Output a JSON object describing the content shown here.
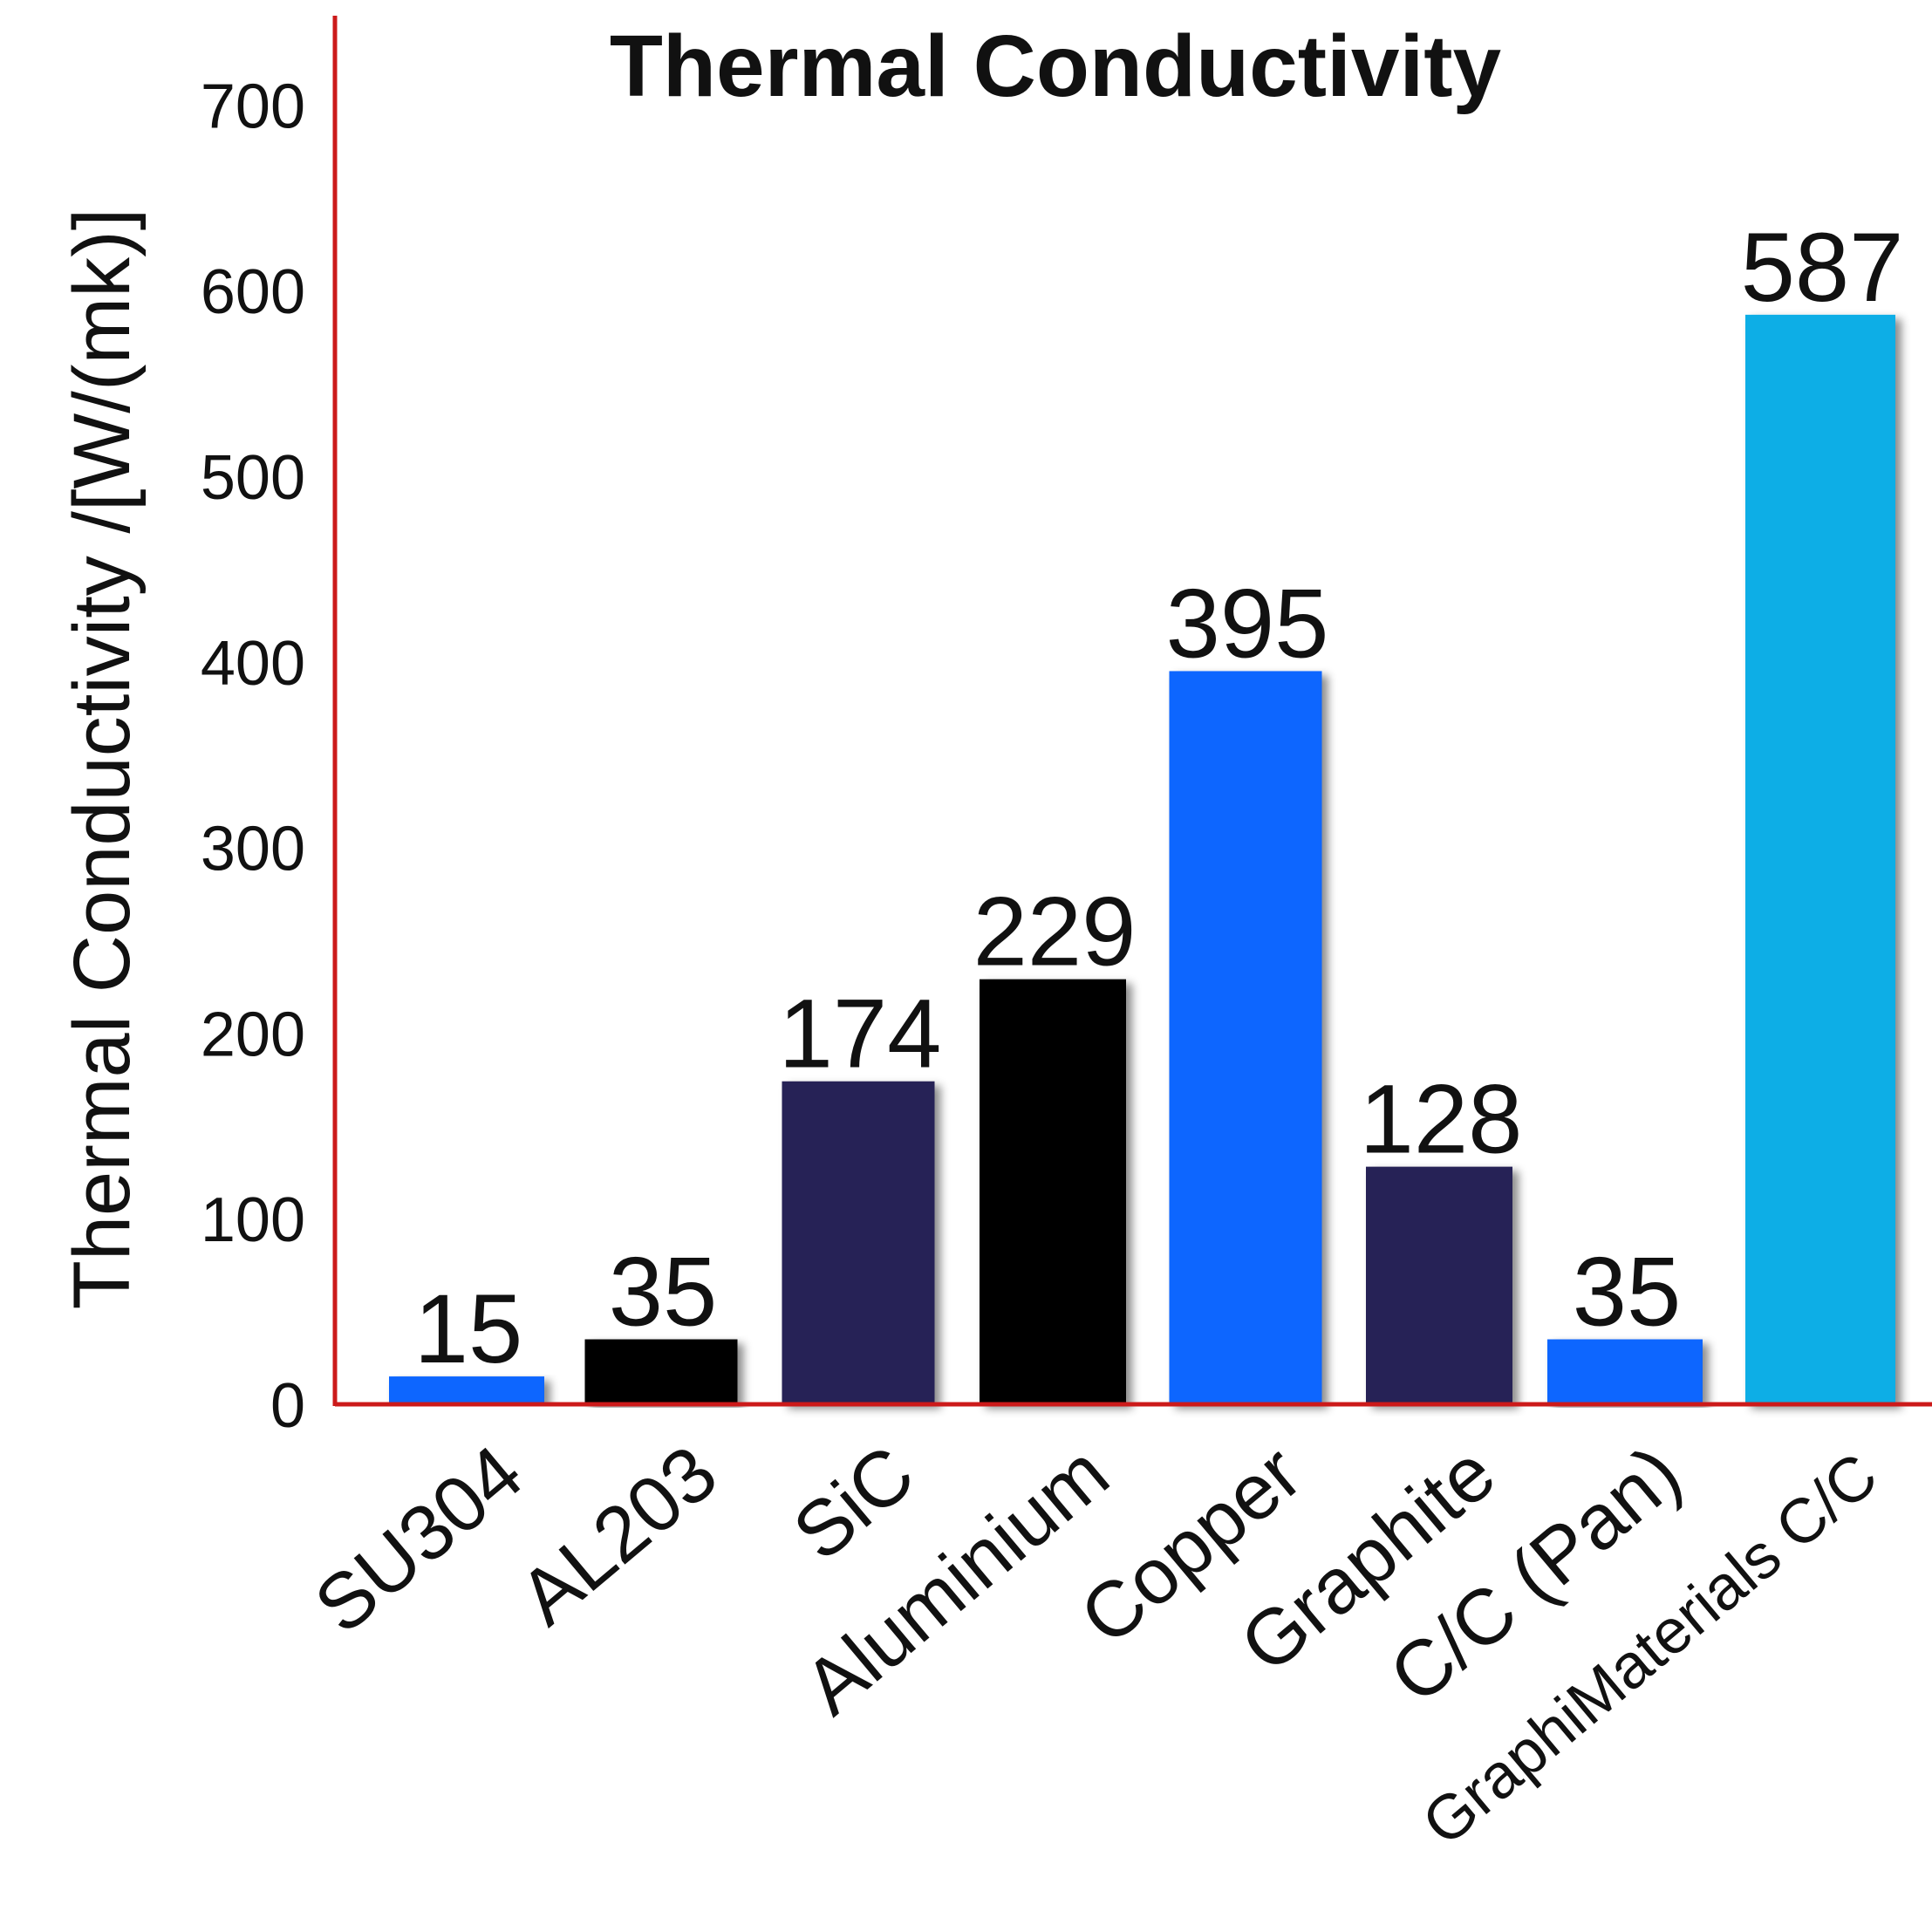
{
  "chart_data": {
    "type": "bar",
    "title": "Thermal Conductivity",
    "ylabel": "Thermal Conductivity /[W/(mk)]",
    "xlabel": "",
    "ylim": [
      0,
      700
    ],
    "yticks": [
      0,
      100,
      200,
      300,
      400,
      500,
      600,
      700
    ],
    "grid": false,
    "categories": [
      "SU304",
      "AL203",
      "SiC",
      "Aluminium",
      "Copper",
      "Graphite",
      "C/C (Pan)",
      "GraphiMaterials C/C"
    ],
    "values": [
      15,
      35,
      174,
      229,
      395,
      128,
      35,
      587
    ],
    "data_labels": [
      "15",
      "35",
      "174",
      "229",
      "395",
      "128",
      "35",
      "587"
    ],
    "bar_colors": [
      "#0a66ff",
      "#000000",
      "#262356",
      "#000000",
      "#0a66ff",
      "#262356",
      "#0a66ff",
      "#0aaee6"
    ],
    "axis_color": "#cc1a1a"
  }
}
